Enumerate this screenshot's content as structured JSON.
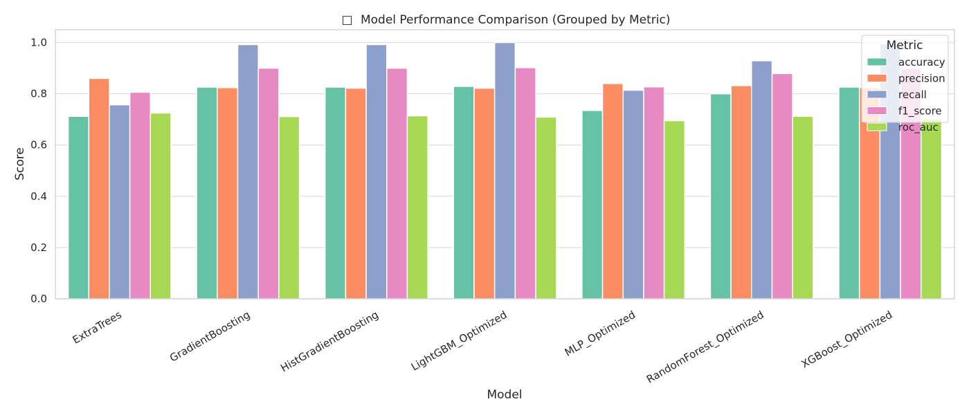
{
  "chart_data": {
    "type": "bar",
    "title": "Model Performance Comparison (Grouped by Metric)",
    "title_icon": "chart-emoji-icon",
    "xlabel": "Model",
    "ylabel": "Score",
    "ylim": [
      0,
      1.05
    ],
    "yticks": [
      "0.0",
      "0.2",
      "0.4",
      "0.6",
      "0.8",
      "1.0"
    ],
    "ytick_values": [
      0,
      0.2,
      0.4,
      0.6,
      0.8,
      1.0
    ],
    "grid": true,
    "legend_position": "top-right",
    "legend_title": "Metric",
    "categories": [
      "ExtraTrees",
      "GradientBoosting",
      "HistGradientBoosting",
      "LightGBM_Optimized",
      "MLP_Optimized",
      "RandomForest_Optimized",
      "XGBoost_Optimized"
    ],
    "series": [
      {
        "name": "accuracy",
        "color": "#66c2a5",
        "values": [
          0.712,
          0.826,
          0.826,
          0.829,
          0.735,
          0.8,
          0.826
        ]
      },
      {
        "name": "precision",
        "color": "#fc8d62",
        "values": [
          0.86,
          0.824,
          0.822,
          0.822,
          0.84,
          0.832,
          0.824
        ]
      },
      {
        "name": "recall",
        "color": "#8da0cb",
        "values": [
          0.757,
          0.992,
          0.992,
          1.0,
          0.814,
          0.929,
          0.995
        ]
      },
      {
        "name": "f1_score",
        "color": "#e78ac3",
        "values": [
          0.806,
          0.9,
          0.9,
          0.902,
          0.827,
          0.879,
          0.9
        ]
      },
      {
        "name": "roc_auc",
        "color": "#a6d854",
        "values": [
          0.725,
          0.711,
          0.714,
          0.709,
          0.695,
          0.712,
          0.702
        ]
      }
    ]
  }
}
